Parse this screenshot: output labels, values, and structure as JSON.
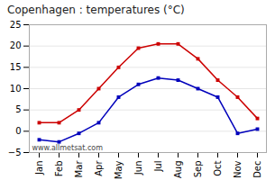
{
  "chart_data": {
    "type": "line",
    "title": "Copenhagen : temperatures (°C)",
    "categories": [
      "Jan",
      "Feb",
      "Mar",
      "Apr",
      "May",
      "Jun",
      "Jul",
      "Aug",
      "Sep",
      "Oct",
      "Nov",
      "Dec"
    ],
    "series": [
      {
        "color": "#cc0000",
        "marker": "square",
        "values": [
          2,
          2,
          5,
          10,
          15,
          19.5,
          20.5,
          20.5,
          17,
          12,
          8,
          3
        ]
      },
      {
        "color": "#0000bb",
        "marker": "square",
        "values": [
          -2,
          -2.5,
          -0.5,
          2,
          8,
          11,
          12.5,
          12,
          10,
          8,
          -0.5,
          0.5
        ]
      }
    ],
    "ylim": [
      -5,
      25
    ],
    "yticks": [
      -5,
      0,
      5,
      10,
      15,
      20,
      25
    ],
    "grid": true,
    "annotations": [
      "www.allmetsat.com"
    ]
  }
}
